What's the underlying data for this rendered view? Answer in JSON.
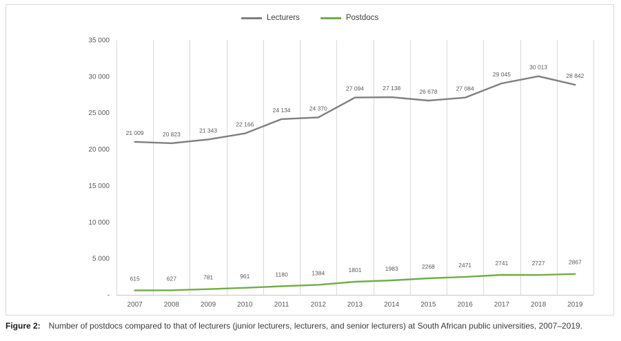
{
  "chart_data": {
    "type": "line",
    "title": "",
    "x": [
      "2007",
      "2008",
      "2009",
      "2010",
      "2011",
      "2012",
      "2013",
      "2014",
      "2015",
      "2016",
      "2017",
      "2018",
      "2019"
    ],
    "ymax": 35000,
    "y_ticks": [
      "-",
      "5 000",
      "10 000",
      "15 000",
      "20 000",
      "25 000",
      "30 000",
      "35 000"
    ],
    "grid": "vertical",
    "legend_position": "top",
    "series": [
      {
        "name": "Lecturers",
        "color": "#7f7f7f",
        "values": [
          21009,
          20823,
          21343,
          22166,
          24134,
          24370,
          27094,
          27138,
          26678,
          27084,
          29045,
          30013,
          28842
        ],
        "labels": [
          "21 009",
          "20 823",
          "21 343",
          "22 166",
          "24 134",
          "24 370",
          "27 094",
          "27 138",
          "26 678",
          "27 084",
          "29 045",
          "30 013",
          "28 842"
        ]
      },
      {
        "name": "Postdocs",
        "color": "#70ad47",
        "values": [
          615,
          627,
          781,
          961,
          1180,
          1384,
          1801,
          1983,
          2268,
          2471,
          2741,
          2727,
          2867
        ],
        "labels": [
          "615",
          "627",
          "781",
          "961",
          "1180",
          "1384",
          "1801",
          "1983",
          "2268",
          "2471",
          "2741",
          "2727",
          "2867"
        ]
      }
    ]
  },
  "caption": {
    "label": "Figure 2:",
    "text": "Number of postdocs compared to that of lecturers (junior lecturers, lecturers, and senior lecturers) at South African public universities, 2007–2019."
  }
}
